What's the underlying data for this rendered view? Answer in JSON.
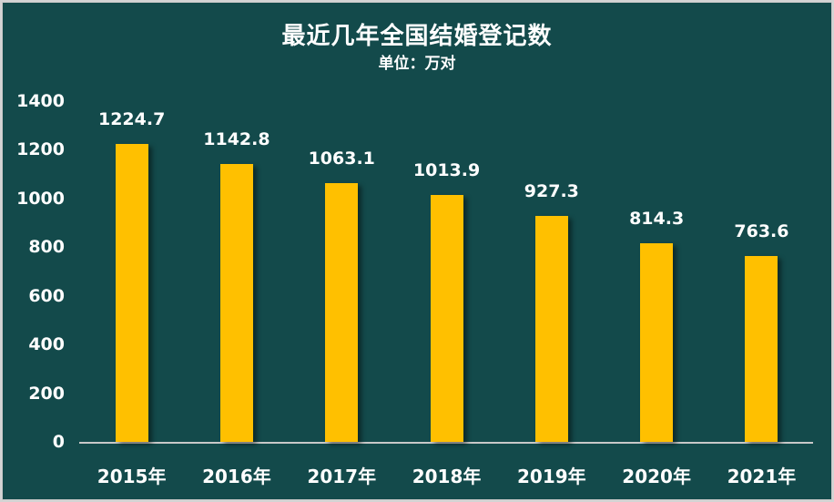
{
  "chart_data": {
    "type": "bar",
    "title": "最近几年全国结婚登记数",
    "subtitle": "单位：万对",
    "categories": [
      "2015年",
      "2016年",
      "2017年",
      "2018年",
      "2019年",
      "2020年",
      "2021年"
    ],
    "values": [
      1224.7,
      1142.8,
      1063.1,
      1013.9,
      927.3,
      814.3,
      763.6
    ],
    "value_labels": [
      "1224.7",
      "1142.8",
      "1063.1",
      "1013.9",
      "927.3",
      "814.3",
      "763.6"
    ],
    "yticks": [
      "0",
      "200",
      "400",
      "600",
      "800",
      "1000",
      "1200",
      "1400"
    ],
    "ylim": [
      0,
      1400
    ],
    "xlabel": "",
    "ylabel": "",
    "grid": false,
    "legend": null,
    "colors": {
      "background": "#134a4b",
      "bar": "#ffc000",
      "text": "#ffffff",
      "axis": "#c8c8c8"
    }
  }
}
